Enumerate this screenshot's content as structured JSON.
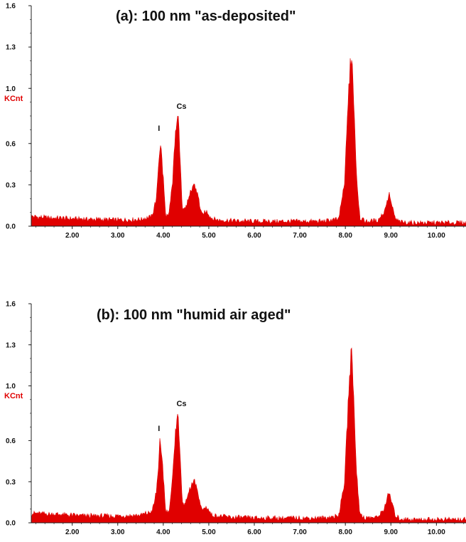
{
  "chart_data": [
    {
      "type": "area",
      "title": "(a): 100 nm \"as-deposited\"",
      "ylabel": "KCnt",
      "xlabel": "",
      "xlim": [
        1.1,
        10.65
      ],
      "ylim": [
        0,
        1.6
      ],
      "yticks": [
        "0.0",
        "0.3",
        "0.6",
        "1.0",
        "1.3",
        "1.6"
      ],
      "xticks": [
        "2.00",
        "3.00",
        "4.00",
        "5.00",
        "6.00",
        "7.00",
        "8.00",
        "9.00",
        "10.00"
      ],
      "peak_labels": [
        {
          "text": "I",
          "x": 3.93,
          "y": 0.67
        },
        {
          "text": "Cs",
          "x": 4.4,
          "y": 0.83
        }
      ],
      "color": "#e00000",
      "series": [
        {
          "x": [
            1.1,
            1.5,
            2.0,
            2.5,
            3.0,
            3.5,
            3.75,
            3.85,
            3.93,
            3.98,
            4.05,
            4.12,
            4.2,
            4.26,
            4.32,
            4.37,
            4.42,
            4.5,
            4.6,
            4.68,
            4.76,
            4.85,
            4.95,
            5.05,
            5.2,
            5.5,
            6.0,
            6.5,
            7.0,
            7.5,
            7.85,
            7.98,
            8.05,
            8.1,
            8.14,
            8.18,
            8.24,
            8.32,
            8.45,
            8.7,
            8.85,
            8.93,
            8.97,
            9.02,
            9.1,
            9.2,
            9.5,
            10.0,
            10.65
          ],
          "values": [
            0.07,
            0.06,
            0.055,
            0.05,
            0.045,
            0.05,
            0.07,
            0.2,
            0.6,
            0.45,
            0.08,
            0.07,
            0.3,
            0.65,
            0.83,
            0.5,
            0.12,
            0.14,
            0.24,
            0.31,
            0.22,
            0.08,
            0.11,
            0.06,
            0.045,
            0.04,
            0.035,
            0.035,
            0.035,
            0.035,
            0.05,
            0.3,
            0.8,
            1.15,
            1.24,
            0.95,
            0.4,
            0.06,
            0.035,
            0.04,
            0.1,
            0.2,
            0.23,
            0.15,
            0.05,
            0.03,
            0.025,
            0.025,
            0.025
          ]
        }
      ]
    },
    {
      "type": "area",
      "title": "(b): 100 nm \"humid air aged\"",
      "ylabel": "KCnt",
      "xlabel": "",
      "xlim": [
        1.1,
        10.65
      ],
      "ylim": [
        0,
        1.6
      ],
      "yticks": [
        "0.0",
        "0.3",
        "0.6",
        "1.0",
        "1.3",
        "1.6"
      ],
      "xticks": [
        "2.00",
        "3.00",
        "4.00",
        "5.00",
        "6.00",
        "7.00",
        "8.00",
        "9.00",
        "10.00"
      ],
      "peak_labels": [
        {
          "text": "I",
          "x": 3.93,
          "y": 0.65
        },
        {
          "text": "Cs",
          "x": 4.4,
          "y": 0.83
        }
      ],
      "color": "#e00000",
      "series": [
        {
          "x": [
            1.1,
            1.5,
            2.0,
            2.5,
            3.0,
            3.5,
            3.75,
            3.85,
            3.93,
            3.98,
            4.05,
            4.12,
            4.2,
            4.26,
            4.32,
            4.37,
            4.42,
            4.5,
            4.6,
            4.68,
            4.76,
            4.85,
            4.95,
            5.05,
            5.2,
            5.5,
            6.0,
            6.5,
            7.0,
            7.5,
            7.85,
            7.98,
            8.05,
            8.1,
            8.14,
            8.18,
            8.24,
            8.32,
            8.45,
            8.7,
            8.85,
            8.93,
            8.97,
            9.02,
            9.1,
            9.2,
            9.5,
            10.0,
            10.65
          ],
          "values": [
            0.07,
            0.065,
            0.055,
            0.05,
            0.05,
            0.055,
            0.08,
            0.22,
            0.6,
            0.45,
            0.09,
            0.08,
            0.3,
            0.65,
            0.82,
            0.5,
            0.13,
            0.15,
            0.26,
            0.32,
            0.22,
            0.09,
            0.12,
            0.06,
            0.05,
            0.04,
            0.035,
            0.035,
            0.035,
            0.035,
            0.05,
            0.3,
            0.8,
            1.15,
            1.24,
            0.95,
            0.4,
            0.06,
            0.035,
            0.04,
            0.1,
            0.19,
            0.22,
            0.15,
            0.05,
            0.03,
            0.025,
            0.025,
            0.025
          ]
        }
      ]
    }
  ]
}
